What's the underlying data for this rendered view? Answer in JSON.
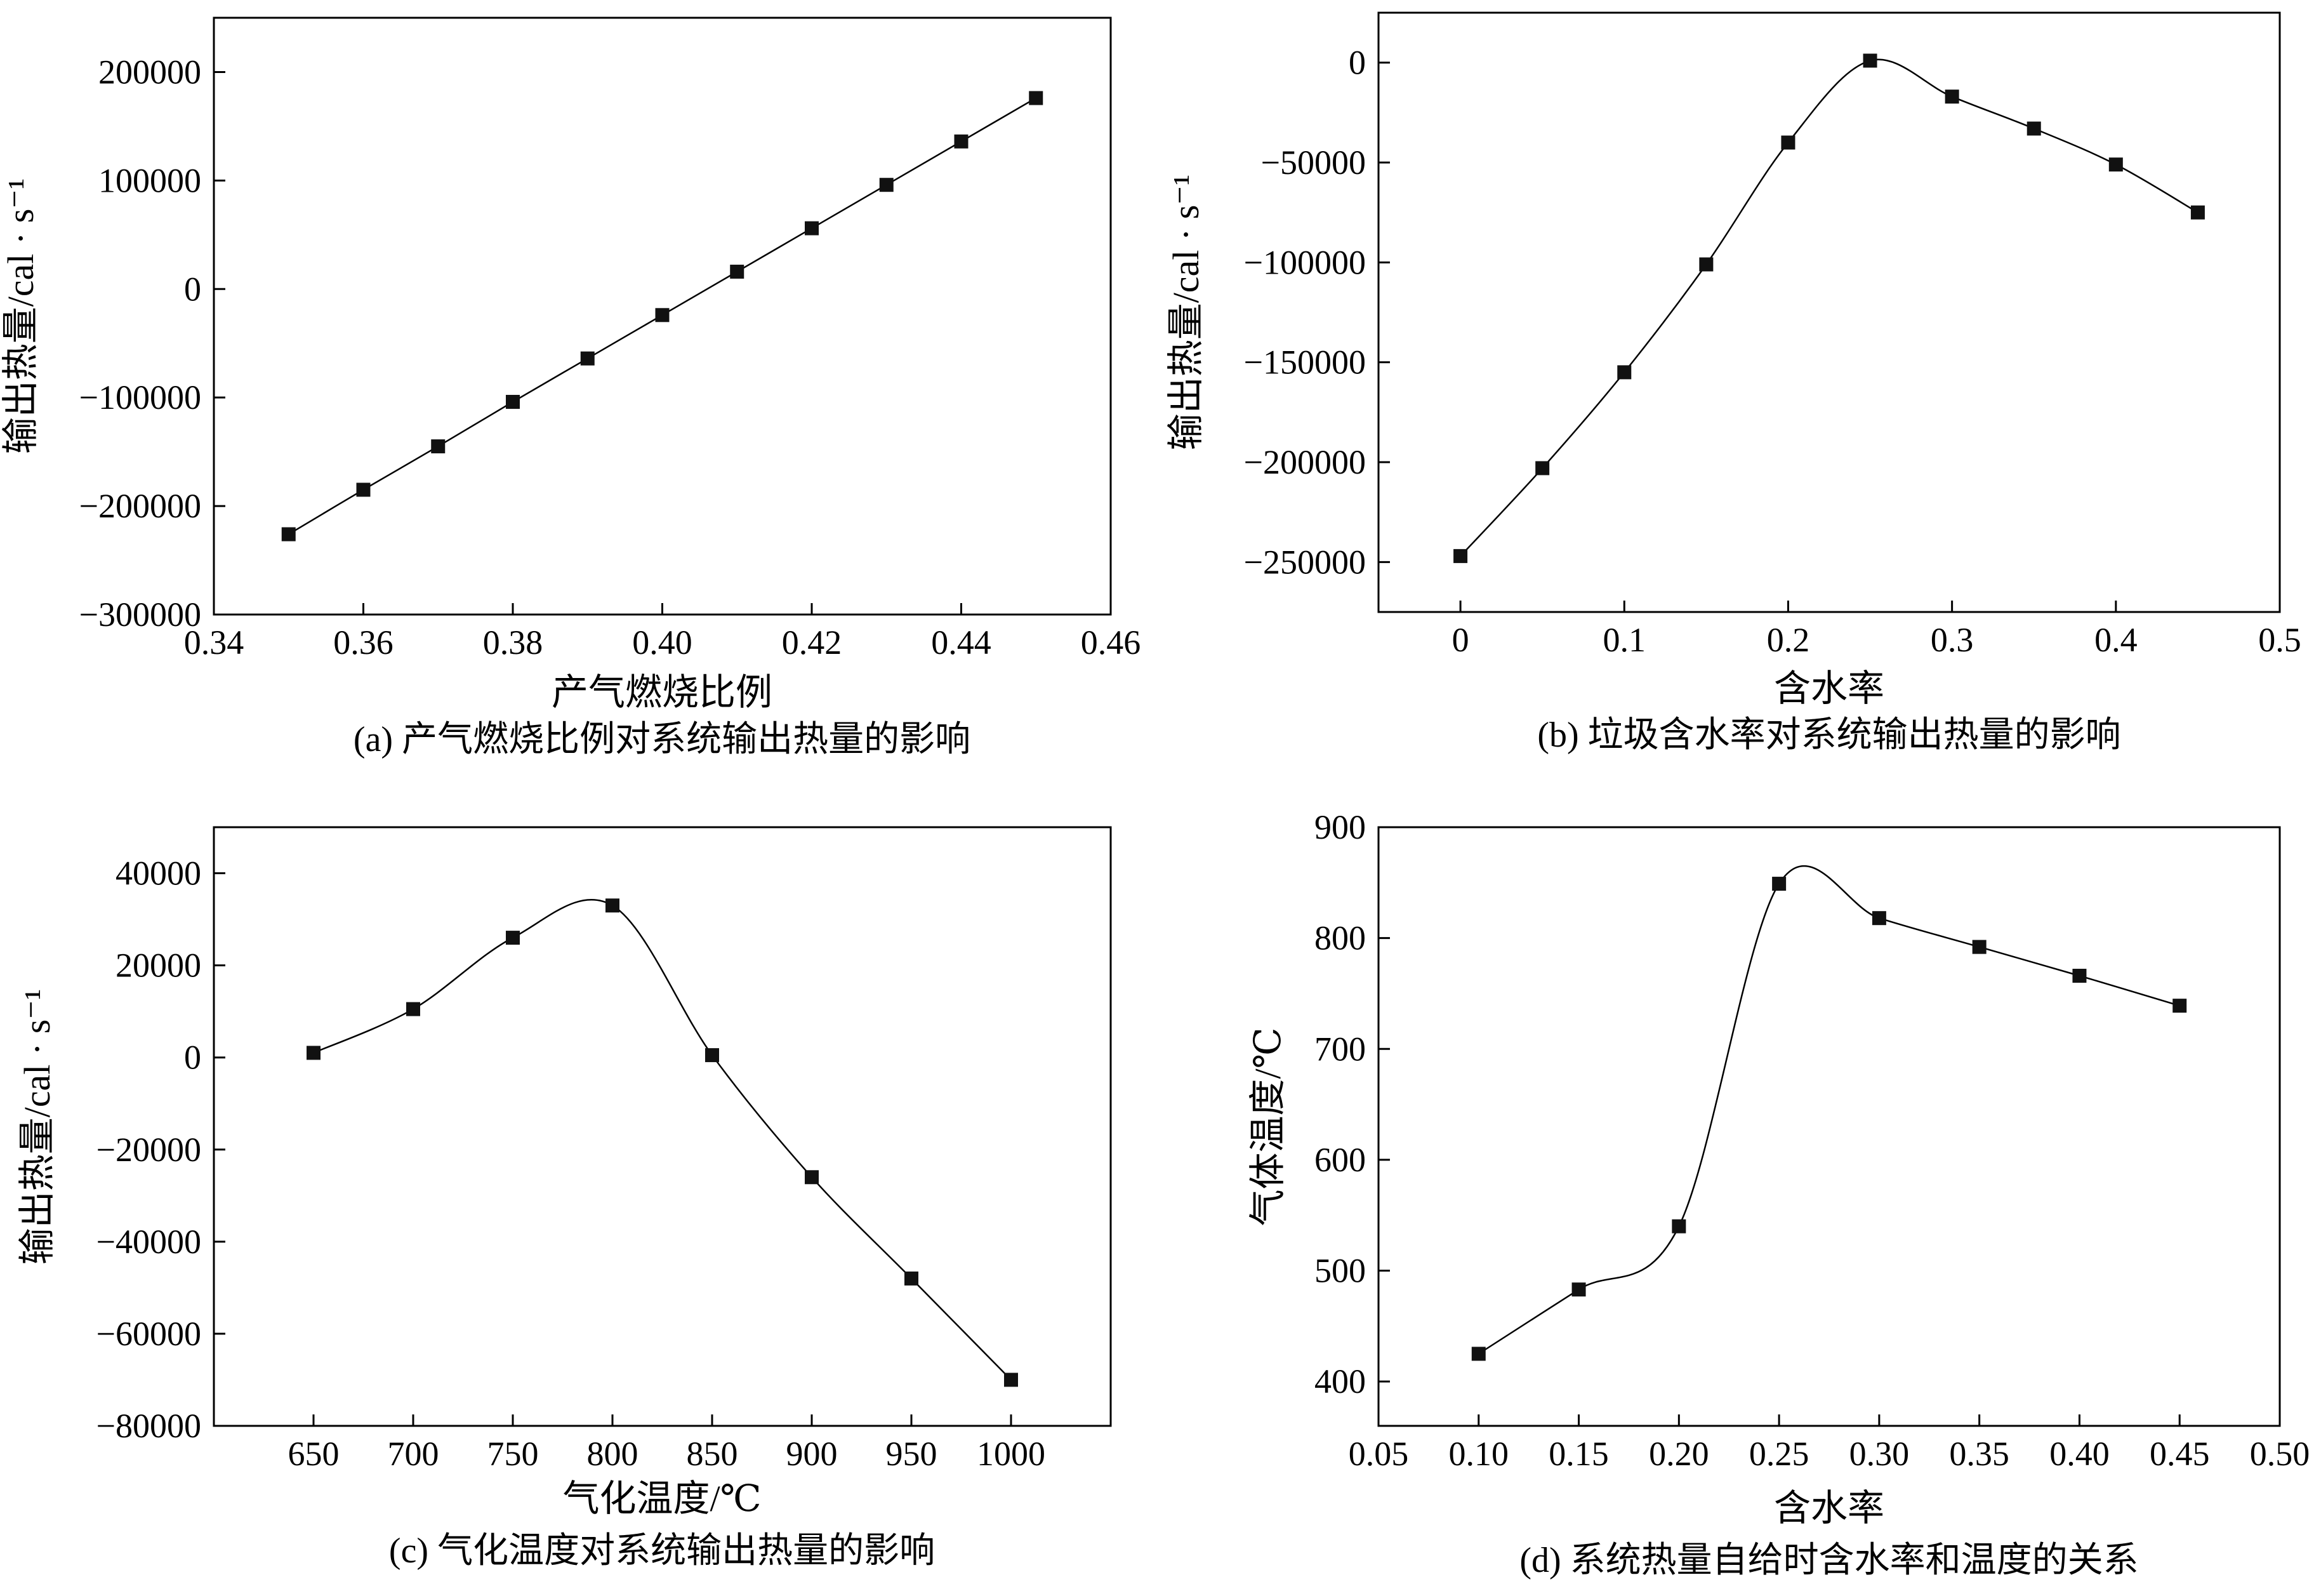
{
  "chart_data": [
    {
      "type": "line",
      "caption": "(a) 产气燃烧比例对系统输出热量的影响",
      "xlabel": "产气燃烧比例",
      "ylabel": "输出热量/cal · s⁻¹",
      "xlim": [
        0.34,
        0.46
      ],
      "ylim": [
        -300000,
        250000
      ],
      "xticks": [
        0.34,
        0.36,
        0.38,
        0.4,
        0.42,
        0.44,
        0.46
      ],
      "xtick_labels": [
        "0.34",
        "0.36",
        "0.38",
        "0.40",
        "0.42",
        "0.44",
        "0.46"
      ],
      "yticks": [
        200000,
        100000,
        0,
        -100000,
        -200000,
        -300000
      ],
      "ytick_labels": [
        "200000",
        "100000",
        "0",
        "−100000",
        "−200000",
        "−300000"
      ],
      "x": [
        0.35,
        0.36,
        0.37,
        0.38,
        0.39,
        0.4,
        0.41,
        0.42,
        0.43,
        0.44,
        0.45
      ],
      "y": [
        -226000,
        -185000,
        -145000,
        -104000,
        -64000,
        -24000,
        16000,
        56000,
        96000,
        136000,
        176000
      ],
      "marker": "square",
      "fit_line": true
    },
    {
      "type": "line",
      "caption": "(b) 垃圾含水率对系统输出热量的影响",
      "xlabel": "含水率",
      "ylabel": "输出热量/cal · s⁻¹",
      "xlim": [
        -0.05,
        0.5
      ],
      "ylim": [
        -275000,
        25000
      ],
      "xticks": [
        0,
        0.1,
        0.2,
        0.3,
        0.4,
        0.5
      ],
      "xtick_labels": [
        "0",
        "0.1",
        "0.2",
        "0.3",
        "0.4",
        "0.5"
      ],
      "yticks": [
        0,
        -50000,
        -100000,
        -150000,
        -200000,
        -250000
      ],
      "ytick_labels": [
        "0",
        "−50000",
        "−100000",
        "−150000",
        "−200000",
        "−250000"
      ],
      "x": [
        0,
        0.05,
        0.1,
        0.15,
        0.2,
        0.25,
        0.3,
        0.35,
        0.4,
        0.45
      ],
      "y": [
        -247000,
        -203000,
        -155000,
        -101000,
        -40000,
        1000,
        -17000,
        -33000,
        -51000,
        -75000
      ],
      "marker": "square",
      "fit_line": true
    },
    {
      "type": "line",
      "caption": "(c) 气化温度对系统输出热量的影响",
      "xlabel": "气化温度/℃",
      "ylabel": "输出热量/cal · s⁻¹",
      "xlim": [
        600,
        1050
      ],
      "ylim": [
        -80000,
        50000
      ],
      "xticks": [
        650,
        700,
        750,
        800,
        850,
        900,
        950,
        1000
      ],
      "xtick_labels": [
        "650",
        "700",
        "750",
        "800",
        "850",
        "900",
        "950",
        "1000"
      ],
      "yticks": [
        40000,
        20000,
        0,
        -20000,
        -40000,
        -60000,
        -80000
      ],
      "ytick_labels": [
        "40000",
        "20000",
        "0",
        "−20000",
        "−40000",
        "−60000",
        "−80000"
      ],
      "x": [
        650,
        700,
        750,
        800,
        850,
        900,
        950,
        1000
      ],
      "y": [
        1000,
        10500,
        26000,
        33000,
        500,
        -26000,
        -48000,
        -70000
      ],
      "marker": "square",
      "fit_line": true
    },
    {
      "type": "line",
      "caption": "(d) 系统热量自给时含水率和温度的关系",
      "xlabel": "含水率",
      "ylabel": "气体温度/℃",
      "xlim": [
        0.05,
        0.5
      ],
      "ylim": [
        360,
        900
      ],
      "xticks": [
        0.05,
        0.1,
        0.15,
        0.2,
        0.25,
        0.3,
        0.35,
        0.4,
        0.45,
        0.5
      ],
      "xtick_labels": [
        "0.05",
        "0.10",
        "0.15",
        "0.20",
        "0.25",
        "0.30",
        "0.35",
        "0.40",
        "0.45",
        "0.50"
      ],
      "yticks": [
        900,
        800,
        700,
        600,
        500,
        400
      ],
      "ytick_labels": [
        "900",
        "800",
        "700",
        "600",
        "500",
        "400"
      ],
      "x": [
        0.1,
        0.15,
        0.2,
        0.25,
        0.3,
        0.35,
        0.4,
        0.45
      ],
      "y": [
        425,
        483,
        540,
        849,
        818,
        792,
        766,
        739
      ],
      "marker": "square",
      "fit_line": true
    }
  ]
}
